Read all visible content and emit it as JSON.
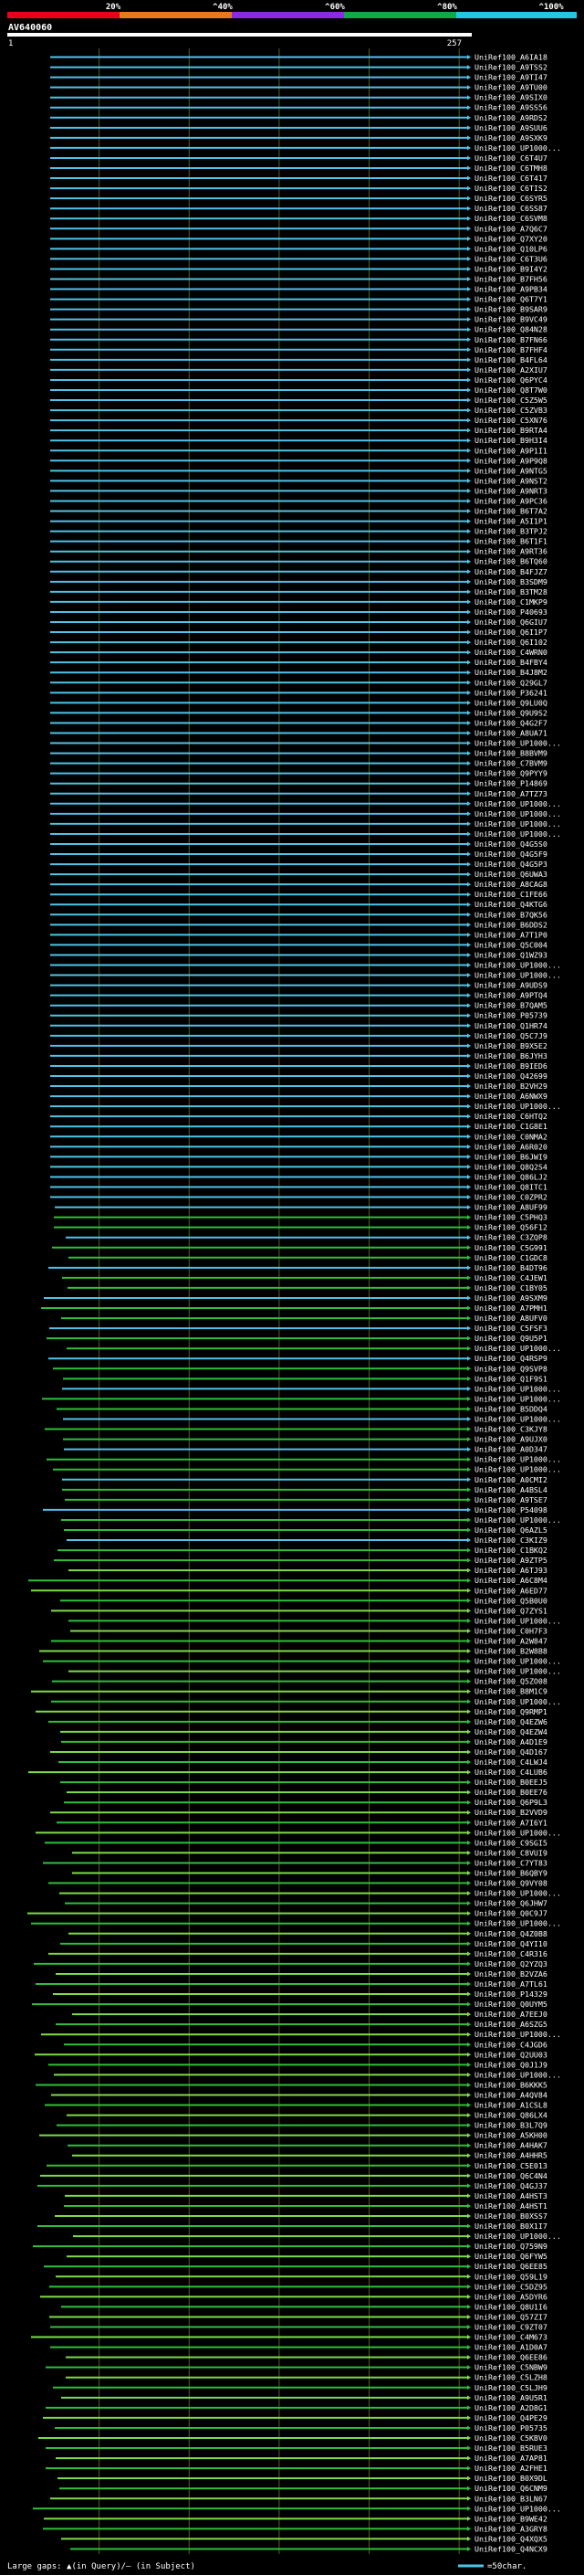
{
  "header": {
    "scale_labels": [
      "20%",
      "^40%",
      "^60%",
      "^80%",
      "^100%"
    ],
    "scale_colors": [
      "#e8001c",
      "#e8781e",
      "#8a2be2",
      "#11a84a",
      "#20c8e0"
    ],
    "query_id": "AV640060",
    "start_label": "1",
    "end_label": "257"
  },
  "colors": {
    "cyan": "#4fc3e8",
    "green": "#2fbf3a",
    "bright_green": "#7ddc48",
    "grid": "#5c5c1a",
    "query_bar": "#ffffff",
    "background": "#000000"
  },
  "hits": [
    "UniRef100_A6IA18",
    "UniRef100_A9TSS2",
    "UniRef100_A9TI47",
    "UniRef100_A9TU00",
    "UniRef100_A9SIX0",
    "UniRef100_A9SS56",
    "UniRef100_A9RDS2",
    "UniRef100_A9SUU6",
    "UniRef100_A9SXK9",
    "UniRef100_UP1000...",
    "UniRef100_C6T4U7",
    "UniRef100_C6TMH8",
    "UniRef100_C6T417",
    "UniRef100_C6TIS2",
    "UniRef100_C6SYR5",
    "UniRef100_C6SS87",
    "UniRef100_C6SVM8",
    "UniRef100_A7Q6C7",
    "UniRef100_Q7XY20",
    "UniRef100_Q10LP6",
    "UniRef100_C6T3U6",
    "UniRef100_B9I4Y2",
    "UniRef100_B7FH56",
    "UniRef100_A9PB34",
    "UniRef100_Q6T7Y1",
    "UniRef100_B9SAR9",
    "UniRef100_B9VC49",
    "UniRef100_Q84N28",
    "UniRef100_B7FN66",
    "UniRef100_B7FHF4",
    "UniRef100_B4FL64",
    "UniRef100_A2XIU7",
    "UniRef100_Q6PYC4",
    "UniRef100_Q8T7W0",
    "UniRef100_C5Z5W5",
    "UniRef100_C5ZVB3",
    "UniRef100_C5XN76",
    "UniRef100_B9RTA4",
    "UniRef100_B9H3I4",
    "UniRef100_A9P1I1",
    "UniRef100_A9P9Q8",
    "UniRef100_A9NTG5",
    "UniRef100_A9NST2",
    "UniRef100_A9NRT3",
    "UniRef100_A9PC36",
    "UniRef100_B6T7A2",
    "UniRef100_A5I1P1",
    "UniRef100_B3TPJ2",
    "UniRef100_B6T1F1",
    "UniRef100_A9RT36",
    "UniRef100_B6TQ60",
    "UniRef100_B4FJZ7",
    "UniRef100_B3SDM9",
    "UniRef100_B3TM28",
    "UniRef100_C1MKP9",
    "UniRef100_P40693",
    "UniRef100_Q6GIU7",
    "UniRef100_Q6I1P7",
    "UniRef100_Q6I102",
    "UniRef100_C4WRN0",
    "UniRef100_B4FBY4",
    "UniRef100_B4J8M2",
    "UniRef100_Q29GL7",
    "UniRef100_P36241",
    "UniRef100_Q9LU0Q",
    "UniRef100_Q9U9S2",
    "UniRef100_Q4G2F7",
    "UniRef100_A8UA71",
    "UniRef100_UP1000...",
    "UniRef100_B8BVM9",
    "UniRef100_C7BVM9",
    "UniRef100_Q9PYY9",
    "UniRef100_P14869",
    "UniRef100_A7TZ73",
    "UniRef100_UP1000...",
    "UniRef100_UP1000...",
    "UniRef100_UP1000...",
    "UniRef100_UP1000...",
    "UniRef100_Q4G5S0",
    "UniRef100_Q4G5F9",
    "UniRef100_Q4G5P3",
    "UniRef100_Q6UWA3",
    "UniRef100_A8CAG8",
    "UniRef100_C1FE66",
    "UniRef100_Q4KTG6",
    "UniRef100_B7QK56",
    "UniRef100_B6DDS2",
    "UniRef100_A7T1P0",
    "UniRef100_Q5C004",
    "UniRef100_Q1WZ93",
    "UniRef100_UP1000...",
    "UniRef100_UP1000...",
    "UniRef100_A9UDS9",
    "UniRef100_A9PTQ4",
    "UniRef100_B7QAM5",
    "UniRef100_P05739",
    "UniRef100_Q1HR74",
    "UniRef100_Q5C7J9",
    "UniRef100_B9X5E2",
    "UniRef100_B6JYH3",
    "UniRef100_B9IED6",
    "UniRef100_Q42699",
    "UniRef100_B2VH29",
    "UniRef100_A6NWX9",
    "UniRef100_UP1000...",
    "UniRef100_C6HTQ2",
    "UniRef100_C1G8E1",
    "UniRef100_C0NMA2",
    "UniRef100_A6R020",
    "UniRef100_B6JWI9",
    "UniRef100_Q8Q2S4",
    "UniRef100_Q86LJ2",
    "UniRef100_Q8ITC1",
    "UniRef100_C0ZPR2",
    "UniRef100_A8UF99",
    "UniRef100_C5PHQ3",
    "UniRef100_Q56F12",
    "UniRef100_C3ZQP8",
    "UniRef100_C5G991",
    "UniRef100_C1GDC8",
    "UniRef100_B4DT96",
    "UniRef100_C4JEW1",
    "UniRef100_C1BY05",
    "UniRef100_A9SXM9",
    "UniRef100_A7PMH1",
    "UniRef100_A8UFV0",
    "UniRef100_C5FSF3",
    "UniRef100_Q9U5P1",
    "UniRef100_UP1000...",
    "UniRef100_Q4RSP9",
    "UniRef100_Q9SVP8",
    "UniRef100_Q1F9S1",
    "UniRef100_UP1000...",
    "UniRef100_UP1000...",
    "UniRef100_B5DDQ4",
    "UniRef100_UP1000...",
    "UniRef100_C3KJY8",
    "UniRef100_A9UJX0",
    "UniRef100_A0D347",
    "UniRef100_UP1000...",
    "UniRef100_UP1000...",
    "UniRef100_A0CMI2",
    "UniRef100_A4BSL4",
    "UniRef100_A9TSE7",
    "UniRef100_P54098",
    "UniRef100_UP1000...",
    "UniRef100_Q6AZL5",
    "UniRef100_C3KIZ9",
    "UniRef100_C1BKQ2",
    "UniRef100_A9ZTP5",
    "UniRef100_A6TJ93",
    "UniRef100_A6C8M4",
    "UniRef100_A6ED77",
    "UniRef100_Q5B0U0",
    "UniRef100_Q7ZYS1",
    "UniRef100_UP1000...",
    "UniRef100_C0H7F3",
    "UniRef100_A2W847",
    "UniRef100_B2W8B8",
    "UniRef100_UP1000...",
    "UniRef100_UP1000...",
    "UniRef100_Q5ZO08",
    "UniRef100_B8M1C9",
    "UniRef100_UP1000...",
    "UniRef100_Q9RMP1",
    "UniRef100_Q4EZW6",
    "UniRef100_Q4EZW4",
    "UniRef100_A4D1E9",
    "UniRef100_Q4D167",
    "UniRef100_C4LWJ4",
    "UniRef100_C4LUB6",
    "UniRef100_B0EEJ5",
    "UniRef100_B0EE76",
    "UniRef100_Q6P9L3",
    "UniRef100_B2VVD9",
    "UniRef100_A7I6Y1",
    "UniRef100_UP1000...",
    "UniRef100_C9SGI5",
    "UniRef100_C8VUI9",
    "UniRef100_C7YT83",
    "UniRef100_B6QBY9",
    "UniRef100_Q9VY08",
    "UniRef100_UP1000...",
    "UniRef100_Q6JHW7",
    "UniRef100_Q0C9J7",
    "UniRef100_UP1000...",
    "UniRef100_Q4Z0B8",
    "UniRef100_Q4YI10",
    "UniRef100_C4R316",
    "UniRef100_Q2YZQ3",
    "UniRef100_B2VZA6",
    "UniRef100_A7TL61",
    "UniRef100_P14329",
    "UniRef100_Q0UYM5",
    "UniRef100_A7EEJ0",
    "UniRef100_A6SZG5",
    "UniRef100_UP1000...",
    "UniRef100_C4JGD6",
    "UniRef100_Q2UU03",
    "UniRef100_Q0J1J9",
    "UniRef100_UP1000...",
    "UniRef100_B6KKK5",
    "UniRef100_A4QV84",
    "UniRef100_A1CSL8",
    "UniRef100_Q86LX4",
    "UniRef100_B3L7Q9",
    "UniRef100_A5KH00",
    "UniRef100_A4HAK7",
    "UniRef100_A4HHR5",
    "UniRef100_C5E013",
    "UniRef100_Q6C4N4",
    "UniRef100_Q4GJ37",
    "UniRef100_A4HST3",
    "UniRef100_A4HST1",
    "UniRef100_B0XSS7",
    "UniRef100_B0X1I7",
    "UniRef100_UP1000...",
    "UniRef100_Q759N9",
    "UniRef100_Q6FYW5",
    "UniRef100_Q6EE85",
    "UniRef100_Q59L19",
    "UniRef100_C5DZ95",
    "UniRef100_A5DYR6",
    "UniRef100_Q8U1I6",
    "UniRef100_Q57ZI7",
    "UniRef100_C9ZT07",
    "UniRef100_C4M673",
    "UniRef100_A1D0A7",
    "UniRef100_Q6EE86",
    "UniRef100_C5NBW9",
    "UniRef100_C5LZH8",
    "UniRef100_C5LJH9",
    "UniRef100_A9U5R1",
    "UniRef100_A2D8G1",
    "UniRef100_Q4PE29",
    "UniRef100_P05735",
    "UniRef100_C5KBV0",
    "UniRef100_B5RUE3",
    "UniRef100_A7AP81",
    "UniRef100_A2FHE1",
    "UniRef100_B0X9DL",
    "UniRef100_Q6CNM9",
    "UniRef100_B3LN67",
    "UniRef100_UP1000...",
    "UniRef100_B9WE42",
    "UniRef100_A3GRY8",
    "UniRef100_Q4XQX5",
    "UniRef100_Q4NCX9"
  ],
  "footer": {
    "legend_text": "Large gaps: ▲(in Query)/– (in Subject)",
    "scale_text": "=50char."
  }
}
